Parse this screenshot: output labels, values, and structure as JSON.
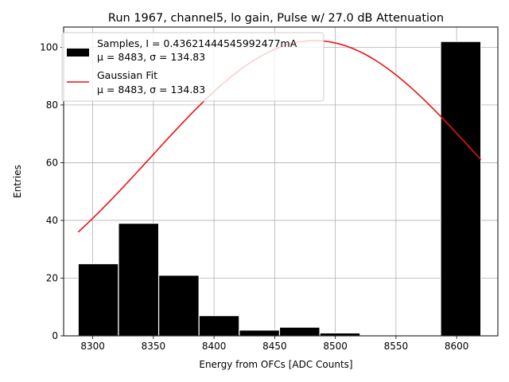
{
  "chart_data": {
    "type": "bar",
    "title": "Run 1967, channel5, lo gain, Pulse w/ 27.0 dB Attenuation",
    "xlabel": "Energy from OFCs [ADC Counts]",
    "ylabel": "Entries",
    "xlim": [
      8276,
      8634
    ],
    "ylim": [
      0,
      107
    ],
    "xticks": [
      8300,
      8350,
      8400,
      8450,
      8500,
      8550,
      8600
    ],
    "yticks": [
      0,
      20,
      40,
      60,
      80,
      100
    ],
    "grid": true,
    "legend_position": "top-left",
    "histogram": {
      "name": "Samples, I = 0.43621444545992477mA",
      "stats": "μ = 8483, σ = 134.83",
      "color": "#000000",
      "bin_edges": [
        8288,
        8321.2,
        8354.4,
        8387.6,
        8420.8,
        8454,
        8487.2,
        8520.4,
        8553.6,
        8586.8,
        8620
      ],
      "counts": [
        25,
        39,
        21,
        7,
        2,
        3,
        1,
        0,
        0,
        102
      ]
    },
    "fit": {
      "name": "Gaussian Fit",
      "stats": "μ = 8483, σ = 134.83",
      "color": "#ee1111",
      "mu": 8483,
      "sigma": 134.83,
      "amplitude": 102.3,
      "x_range": [
        8288,
        8620
      ]
    }
  }
}
